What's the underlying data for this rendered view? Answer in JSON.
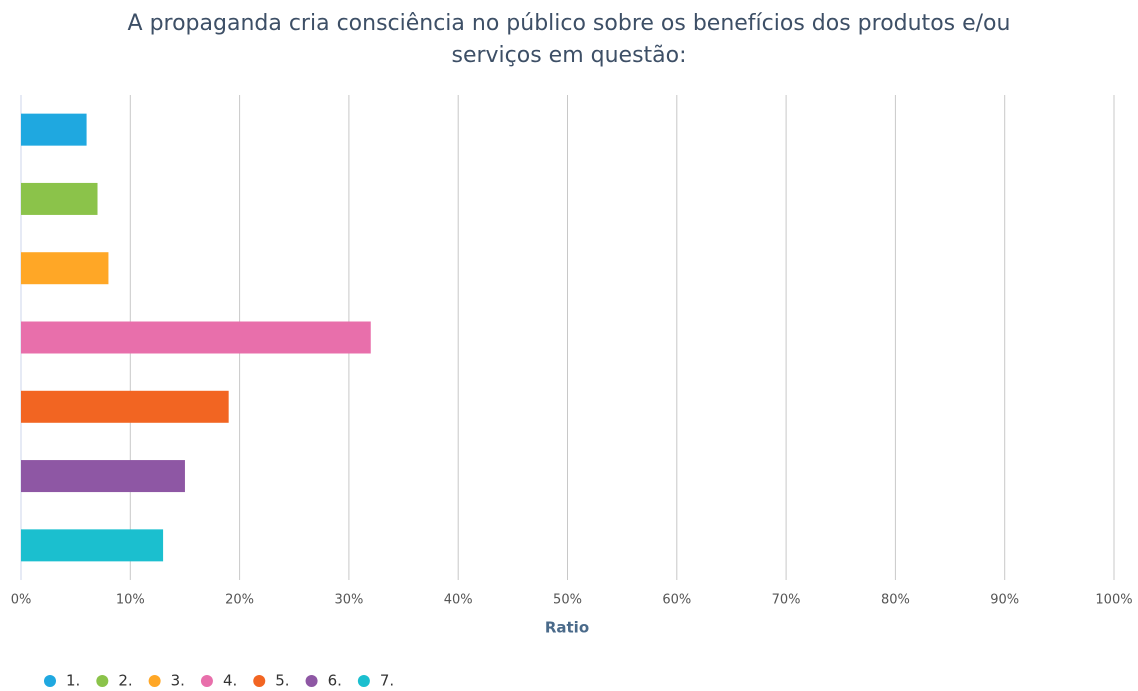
{
  "chart_data": {
    "type": "bar",
    "orientation": "horizontal",
    "title": "A propaganda cria consciência no público sobre os benefícios dos produtos e/ou serviços em questão:",
    "x_label": "Ratio",
    "categories": [
      "1.",
      "2.",
      "3.",
      "4.",
      "5.",
      "6.",
      "7."
    ],
    "values": [
      6,
      7,
      8,
      32,
      19,
      15,
      13
    ],
    "colors": [
      "#1fa8e0",
      "#8bc34a",
      "#ffa726",
      "#e86fab",
      "#f26522",
      "#8e57a4",
      "#1bbfcf"
    ],
    "xlim": [
      0,
      100
    ],
    "xticks": [
      {
        "value": 0,
        "label": "0%"
      },
      {
        "value": 10,
        "label": "10%"
      },
      {
        "value": 20,
        "label": "20%"
      },
      {
        "value": 30,
        "label": "30%"
      },
      {
        "value": 40,
        "label": "40%"
      },
      {
        "value": 50,
        "label": "50%"
      },
      {
        "value": 60,
        "label": "60%"
      },
      {
        "value": 70,
        "label": "70%"
      },
      {
        "value": 80,
        "label": "80%"
      },
      {
        "value": 90,
        "label": "90%"
      },
      {
        "value": 100,
        "label": "100%"
      }
    ],
    "grid": true,
    "legend": "bottom"
  }
}
